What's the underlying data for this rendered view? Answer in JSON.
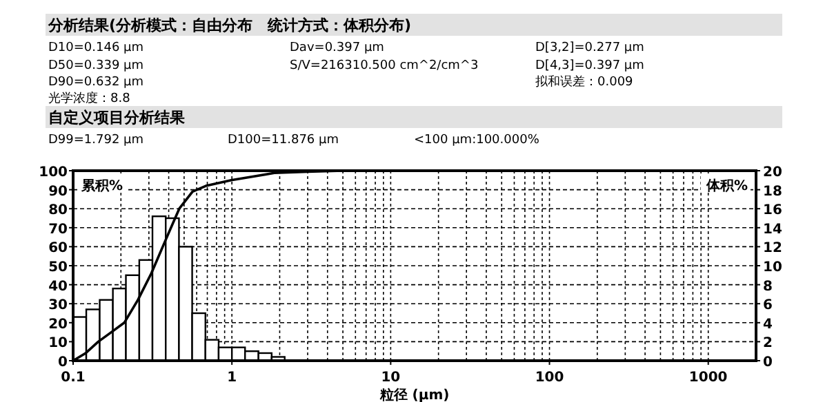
{
  "chart_data": {
    "type": "histogram",
    "title": "分析结果(分析模式：自由分布　统计方式：体积分布)",
    "subtitle": "自定义项目分析结果",
    "annotations": [
      "D10=0.146 μm",
      "Dav=0.397 μm",
      "D[3,2]=0.277 μm",
      "D50=0.339 μm",
      "S/V=216310.500 cm^2/cm^3",
      "D[4,3]=0.397 μm",
      "D90=0.632 μm",
      "拟和误差：0.009",
      "光学浓度：8.8",
      "D99=1.792 μm",
      "D100=11.876 μm",
      "<100 μm:100.000%"
    ],
    "xlabel": "粒径 (μm)",
    "ylabel": "累积%",
    "y2label": "体积%",
    "log": "x",
    "grid": true,
    "xlim": [
      0.1,
      2000
    ],
    "xticks": [
      {
        "value": 0.1,
        "label": "0.1"
      },
      1,
      10,
      100,
      1000
    ],
    "ylim": [
      0,
      100
    ],
    "yticks": [
      0,
      10,
      20,
      30,
      40,
      50,
      60,
      70,
      80,
      90,
      100
    ],
    "y2lim": [
      0,
      20
    ],
    "y2ticks": [
      0,
      2,
      4,
      6,
      8,
      10,
      12,
      14,
      16,
      18,
      20
    ],
    "series": [
      {
        "axis": "y2",
        "color": "#ffffff",
        "bins": [
          0.1,
          0.121,
          0.147,
          0.178,
          0.215,
          0.261,
          0.316,
          0.383,
          0.464,
          0.562,
          0.681,
          0.825,
          1,
          1.21,
          1.47,
          1.78,
          2.15
        ],
        "values": [
          4.6,
          5.4,
          6.4,
          7.6,
          9.0,
          10.6,
          15.2,
          15.0,
          12.0,
          5.0,
          2.2,
          1.4,
          1.4,
          1.0,
          0.8,
          0.4
        ]
      },
      {
        "type": "line",
        "color": "#000000",
        "line_style": "solid",
        "marker": "none",
        "x": [
          0.1,
          0.12,
          0.144,
          0.174,
          0.21,
          0.256,
          0.311,
          0.38,
          0.466,
          0.565,
          0.685,
          0.99,
          1.85,
          3,
          5,
          2000
        ],
        "values": [
          0,
          4,
          10,
          15,
          20,
          32,
          46,
          63,
          80,
          89,
          92,
          95,
          98.8,
          99.5,
          100,
          100
        ]
      }
    ]
  }
}
